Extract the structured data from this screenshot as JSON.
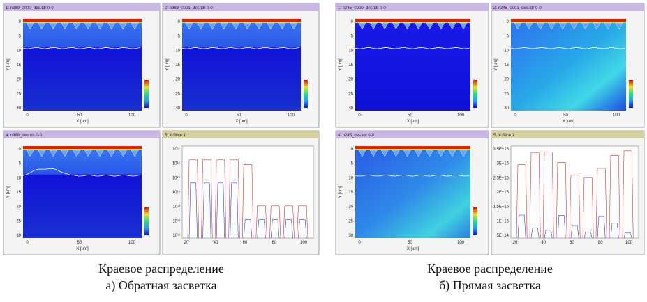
{
  "figures": [
    {
      "panels": [
        {
          "title": "1: n389_0000_des.tdr 0-0",
          "y_label": "Y [um]",
          "x_label": "X [um]",
          "y_ticks": [
            "0",
            "5",
            "10",
            "15",
            "20",
            "25",
            "30"
          ],
          "x_ticks": [
            "0",
            "50",
            "100"
          ]
        },
        {
          "title": "2: n389_0001_des.tdr 0-0",
          "y_label": "Y [um]",
          "x_label": "X [um]",
          "y_ticks": [
            "0",
            "5",
            "10",
            "15",
            "20",
            "25",
            "30"
          ],
          "x_ticks": [
            "0",
            "50",
            "100"
          ]
        },
        {
          "title": "4: n389_des.tdr 0-0",
          "y_label": "Y [um]",
          "x_label": "X [um]",
          "y_ticks": [
            "0",
            "5",
            "10",
            "15",
            "20",
            "25",
            "30"
          ],
          "x_ticks": [
            "0",
            "50",
            "100"
          ]
        },
        {
          "title": "5: Y-Slice 1",
          "y_ticks": [
            "10¹⁷",
            "10¹⁶",
            "10¹⁵",
            "10¹⁴",
            "10¹³",
            "10¹²",
            "10¹¹"
          ],
          "x_ticks": [
            "20",
            "40",
            "60",
            "80",
            "100"
          ]
        }
      ],
      "caption": [
        "Краевое распределение",
        "а) Обратная засветка"
      ]
    },
    {
      "panels": [
        {
          "title": "1: n245_0000_des.tdr 0-0",
          "y_label": "Y [um]",
          "x_label": "X [um]",
          "y_ticks": [
            "0",
            "5",
            "10",
            "15",
            "20",
            "25",
            "30"
          ],
          "x_ticks": [
            "0",
            "50",
            "100"
          ]
        },
        {
          "title": "2: n245_0001_des.tdr 0-0",
          "y_label": "Y [um]",
          "x_label": "X [um]",
          "y_ticks": [
            "0",
            "5",
            "10",
            "15",
            "20",
            "25",
            "30"
          ],
          "x_ticks": [
            "0",
            "50",
            "100"
          ]
        },
        {
          "title": "4: n245_des.tdr 0-0",
          "y_label": "Y [um]",
          "x_label": "X [um]",
          "y_ticks": [
            "0",
            "5",
            "10",
            "15",
            "20",
            "25",
            "30"
          ],
          "x_ticks": [
            "0",
            "50",
            "100"
          ]
        },
        {
          "title": "5: Y-Slice 1",
          "y_ticks": [
            "3.5E+15",
            "3E+15",
            "2.5E+15",
            "2E+15",
            "1.5E+15",
            "1E+15",
            "5E+14"
          ],
          "x_ticks": [
            "20",
            "40",
            "60",
            "80",
            "100"
          ]
        }
      ],
      "caption": [
        "Краевое распределение",
        "б) Прямая засветка"
      ]
    }
  ]
}
